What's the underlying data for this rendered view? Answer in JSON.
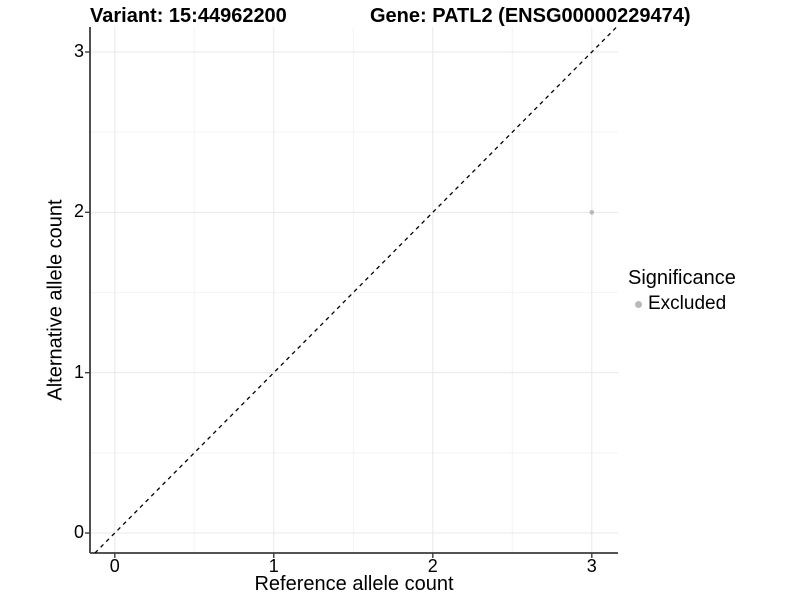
{
  "chart_data": {
    "type": "scatter",
    "titles": [
      "Variant: 15:44962200",
      "Gene: PATL2 (ENSG00000229474)"
    ],
    "xlabel": "Reference allele count",
    "ylabel": "Alternative allele count",
    "x_ticks": [
      0,
      1,
      2,
      3
    ],
    "y_ticks": [
      0,
      1,
      2,
      3
    ],
    "xlim": [
      -0.16,
      3.16
    ],
    "ylim": [
      -0.13,
      3.16
    ],
    "grid": "major and minor gridlines, light gray, on white background",
    "legend_position": "right",
    "reference_line": {
      "kind": "identity y=x",
      "style": "dashed",
      "color": "#000000"
    },
    "series": [
      {
        "name": "Excluded",
        "color": "#b9b9b9",
        "marker": "circle",
        "points": [
          [
            3,
            2
          ]
        ]
      }
    ],
    "legend": {
      "title": "Significance",
      "items": [
        {
          "label": "Excluded",
          "color": "#b9b9b9",
          "marker": "circle"
        }
      ]
    }
  },
  "colors": {
    "background": "#ffffff",
    "grid_major": "#e8e8e8",
    "grid_minor": "#f4f4f4",
    "axis_line": "#3c3c3c",
    "tick_mark": "#3c3c3c",
    "text": "#000000",
    "point": "#b9b9b9",
    "reference_line": "#000000"
  }
}
